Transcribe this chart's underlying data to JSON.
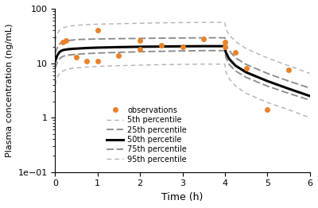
{
  "title": "",
  "xlabel": "Time (h)",
  "ylabel": "Plasma concentration (ng/mL)",
  "xlim": [
    0,
    6
  ],
  "ylim": [
    0.1,
    100
  ],
  "obs_x": [
    0.17,
    0.25,
    0.5,
    0.75,
    1.0,
    1.0,
    1.5,
    2.0,
    2.0,
    2.5,
    3.0,
    3.5,
    4.0,
    4.0,
    4.25,
    4.5,
    5.0,
    5.5
  ],
  "obs_y": [
    24,
    26,
    13,
    11,
    40,
    11,
    14,
    26,
    18,
    21,
    20,
    28,
    24,
    20,
    16,
    8,
    1.4,
    7.5
  ],
  "time": [
    0.0,
    0.05,
    0.1,
    0.15,
    0.2,
    0.3,
    0.4,
    0.5,
    0.6,
    0.75,
    1.0,
    1.5,
    2.0,
    2.5,
    3.0,
    3.5,
    4.0,
    4.02,
    4.1,
    4.25,
    4.5,
    5.0,
    5.5,
    6.0
  ],
  "p5": [
    4.0,
    5.5,
    6.5,
    7.0,
    7.3,
    7.8,
    8.0,
    8.2,
    8.3,
    8.5,
    8.7,
    9.0,
    9.2,
    9.4,
    9.5,
    9.6,
    9.6,
    7.0,
    5.2,
    3.8,
    2.8,
    1.9,
    1.4,
    1.0
  ],
  "p25": [
    8.0,
    10.5,
    12.0,
    13.0,
    13.5,
    14.0,
    14.3,
    14.5,
    14.7,
    15.0,
    15.3,
    15.8,
    16.2,
    16.5,
    16.8,
    17.0,
    17.0,
    13.0,
    9.5,
    7.2,
    5.5,
    3.8,
    2.8,
    2.1
  ],
  "p50": [
    11.0,
    14.0,
    16.0,
    17.0,
    17.5,
    18.0,
    18.3,
    18.5,
    18.7,
    19.0,
    19.3,
    19.7,
    20.0,
    20.2,
    20.4,
    20.5,
    20.5,
    16.0,
    12.0,
    9.0,
    6.8,
    4.7,
    3.4,
    2.5
  ],
  "p75": [
    15.0,
    19.5,
    22.5,
    24.0,
    25.0,
    26.0,
    26.5,
    27.0,
    27.3,
    27.5,
    27.8,
    28.2,
    28.5,
    28.8,
    29.0,
    29.2,
    29.2,
    22.5,
    17.0,
    12.5,
    9.5,
    6.5,
    4.7,
    3.5
  ],
  "p95": [
    26.0,
    35.0,
    40.0,
    43.0,
    45.0,
    47.0,
    48.5,
    49.5,
    50.2,
    51.0,
    52.0,
    53.0,
    54.0,
    55.0,
    55.5,
    56.0,
    56.0,
    43.0,
    33.0,
    25.0,
    18.5,
    12.5,
    9.0,
    6.5
  ],
  "color_p5_p95": "#b0b0b0",
  "color_p25_p75": "#888888",
  "color_p50": "#000000",
  "color_obs": "#e8822a",
  "obs_marker": "o",
  "obs_markersize": 5,
  "lw_p50": 2.2,
  "lw_p25_p75": 1.3,
  "lw_p5_p95": 1.0,
  "legend_fontsize": 7,
  "tick_labelsize": 8,
  "label_fontsize": 9,
  "xlabel_fontsize": 9,
  "ylabel_fontsize": 8
}
